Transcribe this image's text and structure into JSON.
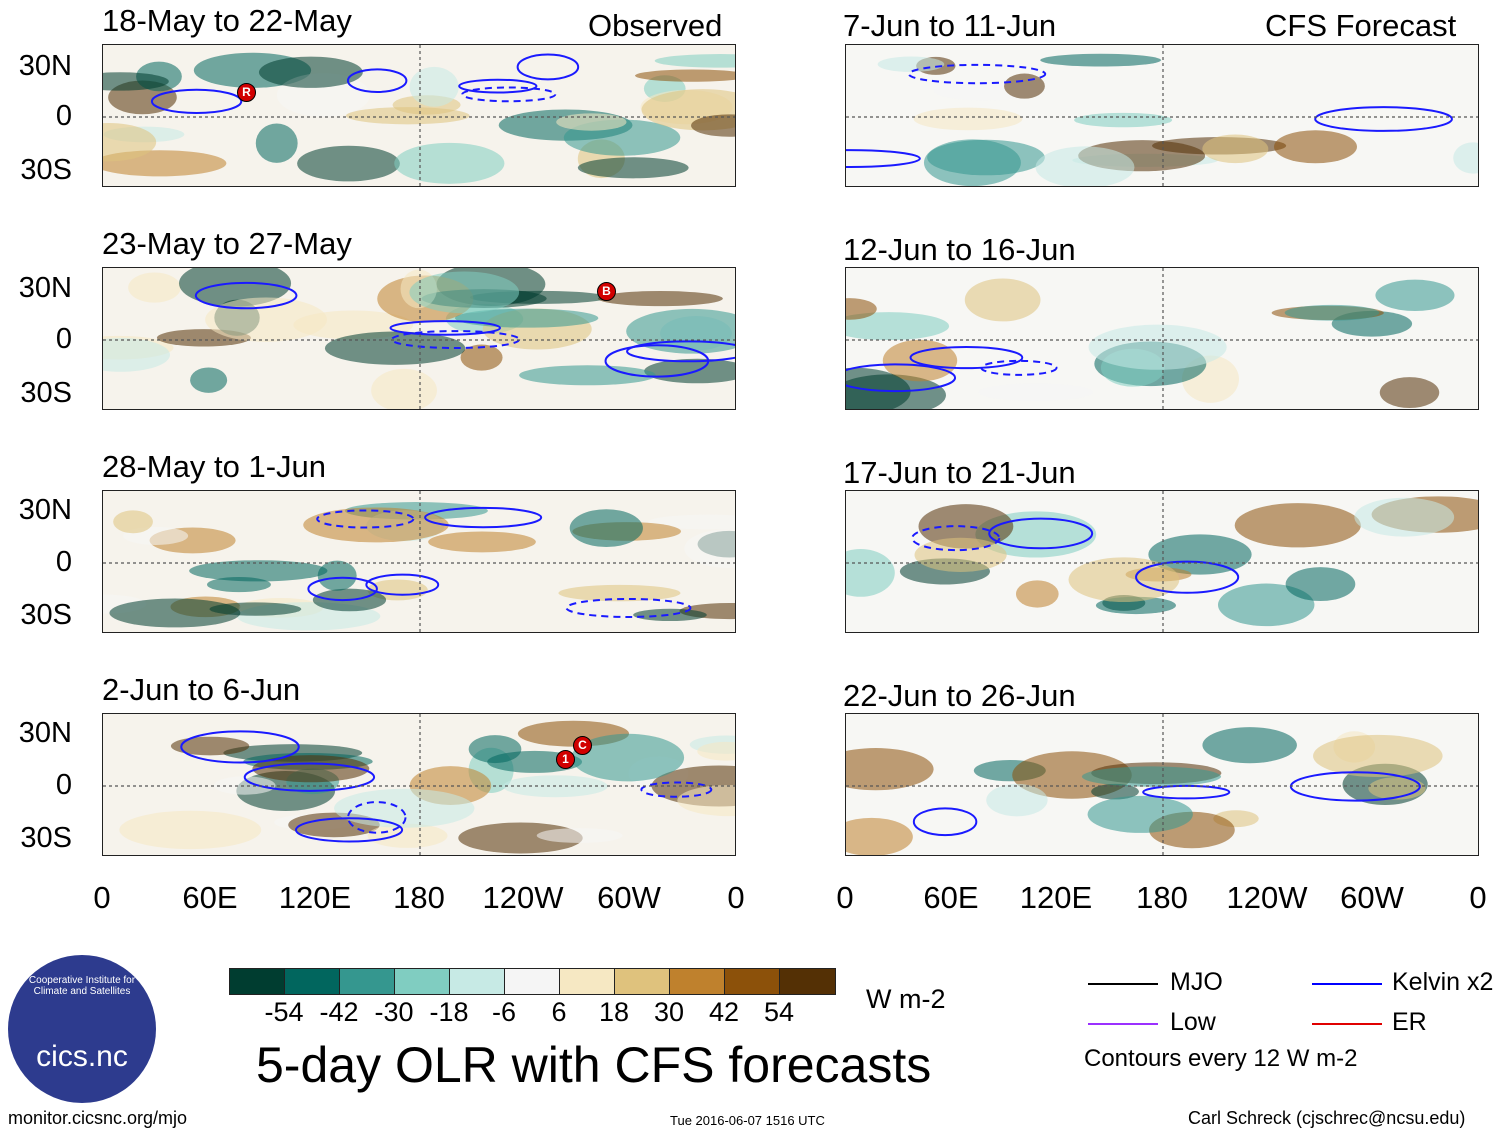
{
  "header": {
    "observed_label": "Observed",
    "forecast_label": "CFS Forecast"
  },
  "observed_panels": [
    {
      "title": "18-May to 22-May"
    },
    {
      "title": "23-May to 27-May"
    },
    {
      "title": "28-May to 1-Jun"
    },
    {
      "title": "2-Jun to 6-Jun"
    }
  ],
  "forecast_panels": [
    {
      "title": "7-Jun to 11-Jun"
    },
    {
      "title": "12-Jun to 16-Jun"
    },
    {
      "title": "17-Jun to 21-Jun"
    },
    {
      "title": "22-Jun to 26-Jun"
    }
  ],
  "lat_labels": [
    "30N",
    "0",
    "30S"
  ],
  "lon_labels": [
    "0",
    "60E",
    "120E",
    "180",
    "120W",
    "60W",
    "0"
  ],
  "storm_markers": [
    {
      "panel": 0,
      "label": "R"
    },
    {
      "panel": 1,
      "label": "B"
    },
    {
      "panel": 3,
      "label": "1"
    },
    {
      "panel": 3,
      "label": "C"
    }
  ],
  "colorbar": {
    "colors": [
      "#003d30",
      "#01665e",
      "#35978f",
      "#80cdc1",
      "#c7eae5",
      "#f5f5f5",
      "#f6e8c3",
      "#dfc27d",
      "#bf812d",
      "#8c510a",
      "#543005"
    ],
    "tick_labels": [
      "-54",
      "-42",
      "-30",
      "-18",
      "-6",
      "6",
      "18",
      "30",
      "42",
      "54"
    ],
    "units": "W m-2"
  },
  "legend": {
    "items": [
      {
        "label": "MJO",
        "color": "#000000"
      },
      {
        "label": "Kelvin x2",
        "color": "#0000ff"
      },
      {
        "label": "Low",
        "color": "#9b30ff"
      },
      {
        "label": "ER",
        "color": "#e00000"
      }
    ],
    "note": "Contours every 12 W m-2"
  },
  "logo": {
    "text": "cics.nc",
    "ring_text": "Cooperative Institute for Climate and Satellites"
  },
  "main_title": "5-day OLR with CFS forecasts",
  "footer": {
    "url": "monitor.cicsnc.org/mjo",
    "timestamp": "Tue 2016-06-07 1516 UTC",
    "credit": "Carl Schreck (cjschrec@ncsu.edu)"
  }
}
